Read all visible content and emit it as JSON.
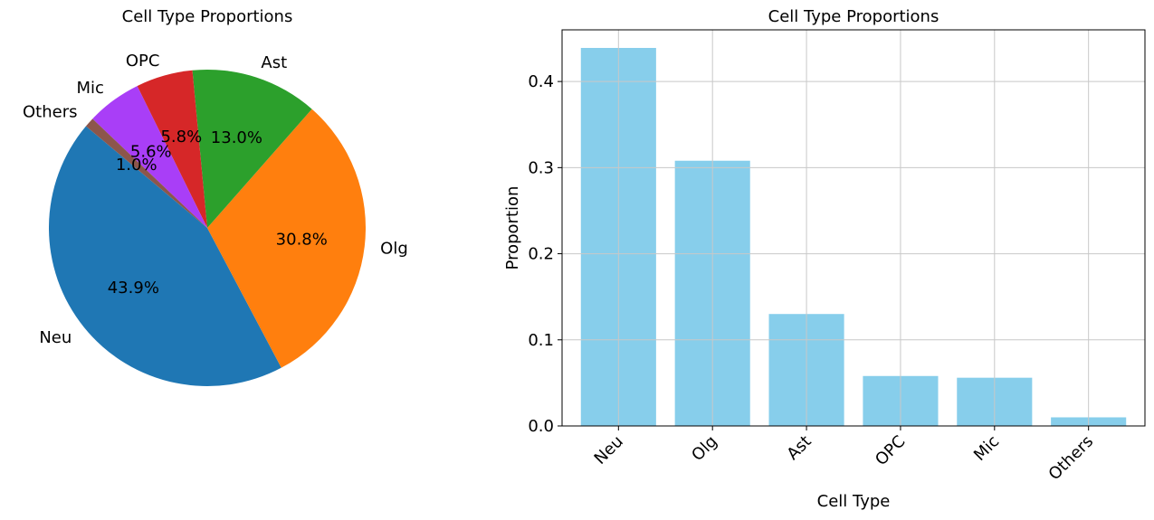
{
  "chart_data": [
    {
      "type": "pie",
      "title": "Cell Type Proportions",
      "categories": [
        "Neu",
        "Olg",
        "Ast",
        "OPC",
        "Mic",
        "Others"
      ],
      "values": [
        0.439,
        0.308,
        0.13,
        0.058,
        0.056,
        0.01
      ],
      "percent_labels": [
        "43.9%",
        "30.8%",
        "13.0%",
        "5.8%",
        "5.6%",
        "1.0%"
      ],
      "colors": [
        "#1f77b4",
        "#ff7f0e",
        "#2ca02c",
        "#d62728",
        "#a93ef7",
        "#8c564b"
      ],
      "start_angle_deg": 140,
      "direction": "counterclockwise"
    },
    {
      "type": "bar",
      "title": "Cell Type Proportions",
      "xlabel": "Cell Type",
      "ylabel": "Proportion",
      "categories": [
        "Neu",
        "Olg",
        "Ast",
        "OPC",
        "Mic",
        "Others"
      ],
      "values": [
        0.439,
        0.308,
        0.13,
        0.058,
        0.056,
        0.01
      ],
      "ylim": [
        0,
        0.46
      ],
      "yticks": [
        0.0,
        0.1,
        0.2,
        0.3,
        0.4
      ],
      "ytick_labels": [
        "0.0",
        "0.1",
        "0.2",
        "0.3",
        "0.4"
      ],
      "bar_color": "#87ceeb",
      "grid": true,
      "xtick_rotation_deg": 45
    }
  ]
}
